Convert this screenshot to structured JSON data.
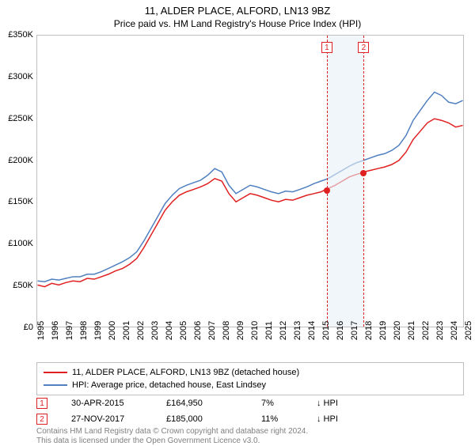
{
  "title": "11, ALDER PLACE, ALFORD, LN13 9BZ",
  "subtitle": "Price paid vs. HM Land Registry's House Price Index (HPI)",
  "chart": {
    "type": "line",
    "x_domain": [
      1995,
      2025
    ],
    "y_domain": [
      0,
      350000
    ],
    "background_color": "#ffffff",
    "border_color": "#c0c0c0",
    "highlight_band": {
      "from": 2015.33,
      "to": 2017.91,
      "color": "#e8f0f8"
    },
    "vlines": [
      {
        "x": 2015.33,
        "color": "#e02020",
        "label": "1"
      },
      {
        "x": 2017.91,
        "color": "#e02020",
        "label": "2"
      }
    ],
    "x_ticks": [
      1995,
      1996,
      1997,
      1998,
      1999,
      2000,
      2001,
      2002,
      2003,
      2004,
      2005,
      2006,
      2007,
      2008,
      2009,
      2010,
      2011,
      2012,
      2013,
      2014,
      2015,
      2016,
      2017,
      2018,
      2019,
      2020,
      2021,
      2022,
      2023,
      2024,
      2025
    ],
    "y_ticks": [
      {
        "v": 0,
        "label": "£0"
      },
      {
        "v": 50000,
        "label": "£50K"
      },
      {
        "v": 100000,
        "label": "£100K"
      },
      {
        "v": 150000,
        "label": "£150K"
      },
      {
        "v": 200000,
        "label": "£200K"
      },
      {
        "v": 250000,
        "label": "£250K"
      },
      {
        "v": 300000,
        "label": "£300K"
      },
      {
        "v": 350000,
        "label": "£350K"
      }
    ],
    "series": [
      {
        "name": "11, ALDER PLACE, ALFORD, LN13 9BZ (detached house)",
        "color": "#e02020",
        "line_width": 1.5,
        "data": [
          [
            1995,
            50000
          ],
          [
            1995.5,
            48000
          ],
          [
            1996,
            52000
          ],
          [
            1996.5,
            50000
          ],
          [
            1997,
            53000
          ],
          [
            1997.5,
            55000
          ],
          [
            1998,
            54000
          ],
          [
            1998.5,
            58000
          ],
          [
            1999,
            57000
          ],
          [
            1999.5,
            60000
          ],
          [
            2000,
            63000
          ],
          [
            2000.5,
            67000
          ],
          [
            2001,
            70000
          ],
          [
            2001.5,
            75000
          ],
          [
            2002,
            82000
          ],
          [
            2002.5,
            95000
          ],
          [
            2003,
            110000
          ],
          [
            2003.5,
            125000
          ],
          [
            2004,
            140000
          ],
          [
            2004.5,
            150000
          ],
          [
            2005,
            158000
          ],
          [
            2005.5,
            162000
          ],
          [
            2006,
            165000
          ],
          [
            2006.5,
            168000
          ],
          [
            2007,
            172000
          ],
          [
            2007.5,
            178000
          ],
          [
            2008,
            175000
          ],
          [
            2008.5,
            160000
          ],
          [
            2009,
            150000
          ],
          [
            2009.5,
            155000
          ],
          [
            2010,
            160000
          ],
          [
            2010.5,
            158000
          ],
          [
            2011,
            155000
          ],
          [
            2011.5,
            152000
          ],
          [
            2012,
            150000
          ],
          [
            2012.5,
            153000
          ],
          [
            2013,
            152000
          ],
          [
            2013.5,
            155000
          ],
          [
            2014,
            158000
          ],
          [
            2014.5,
            160000
          ],
          [
            2015,
            162000
          ],
          [
            2015.33,
            164950
          ],
          [
            2015.5,
            166000
          ],
          [
            2016,
            170000
          ],
          [
            2016.5,
            175000
          ],
          [
            2017,
            180000
          ],
          [
            2017.5,
            183000
          ],
          [
            2017.91,
            185000
          ],
          [
            2018,
            186000
          ],
          [
            2018.5,
            188000
          ],
          [
            2019,
            190000
          ],
          [
            2019.5,
            192000
          ],
          [
            2020,
            195000
          ],
          [
            2020.5,
            200000
          ],
          [
            2021,
            210000
          ],
          [
            2021.5,
            225000
          ],
          [
            2022,
            235000
          ],
          [
            2022.5,
            245000
          ],
          [
            2023,
            250000
          ],
          [
            2023.5,
            248000
          ],
          [
            2024,
            245000
          ],
          [
            2024.5,
            240000
          ],
          [
            2025,
            242000
          ]
        ]
      },
      {
        "name": "HPI: Average price, detached house, East Lindsey",
        "color": "#5080c0",
        "line_width": 1.5,
        "data": [
          [
            1995,
            55000
          ],
          [
            1995.5,
            54000
          ],
          [
            1996,
            57000
          ],
          [
            1996.5,
            56000
          ],
          [
            1997,
            58000
          ],
          [
            1997.5,
            60000
          ],
          [
            1998,
            60000
          ],
          [
            1998.5,
            63000
          ],
          [
            1999,
            63000
          ],
          [
            1999.5,
            66000
          ],
          [
            2000,
            70000
          ],
          [
            2000.5,
            74000
          ],
          [
            2001,
            78000
          ],
          [
            2001.5,
            83000
          ],
          [
            2002,
            90000
          ],
          [
            2002.5,
            103000
          ],
          [
            2003,
            118000
          ],
          [
            2003.5,
            133000
          ],
          [
            2004,
            148000
          ],
          [
            2004.5,
            158000
          ],
          [
            2005,
            166000
          ],
          [
            2005.5,
            170000
          ],
          [
            2006,
            173000
          ],
          [
            2006.5,
            176000
          ],
          [
            2007,
            182000
          ],
          [
            2007.5,
            190000
          ],
          [
            2008,
            186000
          ],
          [
            2008.5,
            170000
          ],
          [
            2009,
            160000
          ],
          [
            2009.5,
            165000
          ],
          [
            2010,
            170000
          ],
          [
            2010.5,
            168000
          ],
          [
            2011,
            165000
          ],
          [
            2011.5,
            162000
          ],
          [
            2012,
            160000
          ],
          [
            2012.5,
            163000
          ],
          [
            2013,
            162000
          ],
          [
            2013.5,
            165000
          ],
          [
            2014,
            168000
          ],
          [
            2014.5,
            172000
          ],
          [
            2015,
            175000
          ],
          [
            2015.5,
            178000
          ],
          [
            2016,
            183000
          ],
          [
            2016.5,
            188000
          ],
          [
            2017,
            193000
          ],
          [
            2017.5,
            197000
          ],
          [
            2018,
            200000
          ],
          [
            2018.5,
            203000
          ],
          [
            2019,
            206000
          ],
          [
            2019.5,
            208000
          ],
          [
            2020,
            212000
          ],
          [
            2020.5,
            218000
          ],
          [
            2021,
            230000
          ],
          [
            2021.5,
            248000
          ],
          [
            2022,
            260000
          ],
          [
            2022.5,
            272000
          ],
          [
            2023,
            282000
          ],
          [
            2023.5,
            278000
          ],
          [
            2024,
            270000
          ],
          [
            2024.5,
            268000
          ],
          [
            2025,
            272000
          ]
        ]
      }
    ],
    "sale_points": [
      {
        "x": 2015.33,
        "y": 164950
      },
      {
        "x": 2017.91,
        "y": 185000
      }
    ]
  },
  "legend": {
    "items": [
      {
        "color": "#e02020",
        "label": "11, ALDER PLACE, ALFORD, LN13 9BZ (detached house)"
      },
      {
        "color": "#5080c0",
        "label": "HPI: Average price, detached house, East Lindsey"
      }
    ]
  },
  "sales": [
    {
      "marker": "1",
      "date": "30-APR-2015",
      "price": "£164,950",
      "pct": "7%",
      "note": "↓ HPI"
    },
    {
      "marker": "2",
      "date": "27-NOV-2017",
      "price": "£185,000",
      "pct": "11%",
      "note": "↓ HPI"
    }
  ],
  "license": {
    "line1": "Contains HM Land Registry data © Crown copyright and database right 2024.",
    "line2": "This data is licensed under the Open Government Licence v3.0."
  }
}
